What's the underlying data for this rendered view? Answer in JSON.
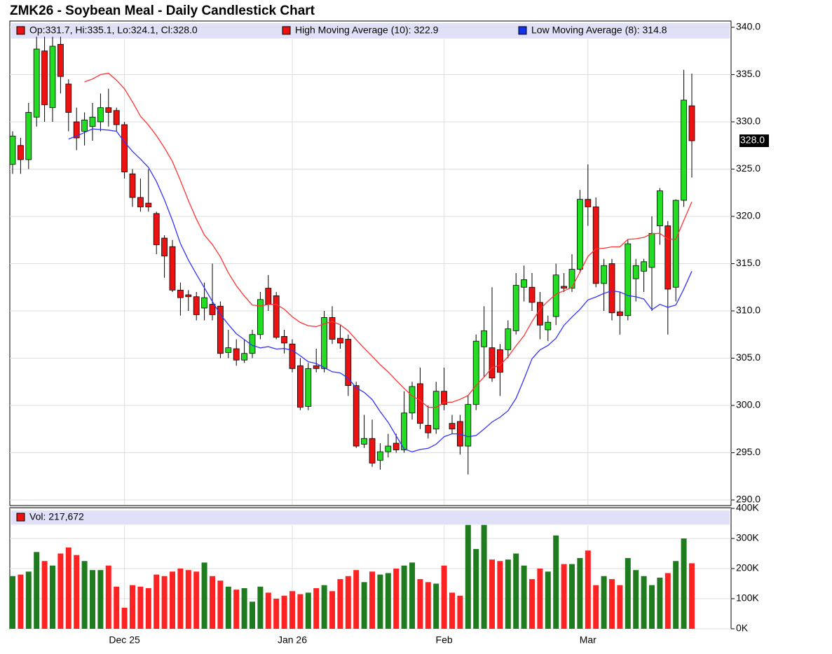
{
  "chart_data": {
    "type": "candlestick",
    "title": "ZMK26 - Soybean Meal - Daily Candlestick Chart",
    "ohlc_label": "Op:331.7, Hi:335.1, Lo:324.1, Cl:328.0",
    "high_ma_label": "High Moving Average (10): 322.9",
    "low_ma_label": "Low Moving Average (8): 314.8",
    "volume_label": "Vol: 217,672",
    "last_price": {
      "value": 328.0,
      "label": "328.0"
    },
    "up_color": "#22dd22",
    "down_color": "#ee1111",
    "vol_up_color": "#1e7b1e",
    "vol_down_color": "#ff2222",
    "high_ma_color": "#ff3333",
    "low_ma_color": "#3333ff",
    "categories": [
      null,
      null,
      null,
      null,
      null,
      null,
      null,
      null,
      null,
      null,
      null,
      null,
      null,
      null,
      "Dec 25",
      null,
      null,
      null,
      null,
      null,
      null,
      null,
      null,
      null,
      null,
      null,
      null,
      null,
      null,
      null,
      null,
      null,
      null,
      null,
      null,
      "Jan 26",
      null,
      null,
      null,
      null,
      null,
      null,
      null,
      null,
      null,
      null,
      null,
      null,
      null,
      null,
      null,
      null,
      null,
      null,
      "Feb",
      null,
      null,
      null,
      null,
      null,
      null,
      null,
      null,
      null,
      null,
      null,
      null,
      null,
      null,
      null,
      null,
      null,
      "Mar",
      null,
      null,
      null,
      null,
      null,
      null,
      null,
      null,
      null,
      null,
      null,
      null,
      null
    ],
    "open": [
      325.5,
      327.5,
      326,
      330.5,
      337.5,
      331.5,
      338.2,
      334,
      330,
      329,
      329.5,
      330,
      331.5,
      331.2,
      329.7,
      324.5,
      322,
      321.4,
      320.3,
      317.7,
      316.8,
      312.2,
      311.7,
      311.5,
      310.3,
      310.7,
      310.5,
      305.6,
      306,
      304.8,
      305.5,
      307.5,
      312.4,
      311.6,
      307.3,
      306.5,
      304.2,
      299.9,
      304.2,
      303.9,
      309.3,
      307.1,
      307,
      302.1,
      295.9,
      296.5,
      294.2,
      295.1,
      296,
      295.3,
      299.2,
      302.3,
      297.9,
      297.5,
      301.5,
      298.1,
      298.3,
      295.7,
      300.1,
      306.2,
      306.1,
      305.9,
      305.9,
      307.9,
      312.5,
      312.5,
      310.9,
      308,
      309.4,
      312.6,
      312.4,
      314.4,
      321.8,
      321,
      312.9,
      315,
      309.9,
      309.5,
      313.4,
      314.2,
      314.6,
      319,
      319,
      312.5,
      321.7,
      331.7
    ],
    "high": [
      329,
      328.3,
      332,
      339,
      339,
      339,
      339,
      334.5,
      331.5,
      331,
      332,
      333,
      333.5,
      331.5,
      330,
      325,
      324,
      325,
      320.5,
      318,
      317.5,
      313,
      312.2,
      312,
      313,
      315,
      311,
      308,
      307,
      307,
      308,
      312,
      313.8,
      312,
      308,
      307,
      305,
      304.5,
      306,
      310,
      310.5,
      308.5,
      307.5,
      302.5,
      299,
      298.5,
      296,
      297,
      297,
      301.5,
      302.5,
      304,
      300,
      302.5,
      304,
      299,
      299,
      301,
      307.5,
      310.5,
      312.5,
      306.5,
      309,
      314,
      314.8,
      314,
      312,
      309.5,
      315,
      314,
      316,
      322.8,
      325.5,
      322,
      315.5,
      315.5,
      312,
      317.5,
      315.5,
      315.5,
      320,
      323,
      319.5,
      321.8,
      335.5,
      335.1
    ],
    "low": [
      324.5,
      324.5,
      325,
      329.5,
      330,
      330,
      333,
      329,
      327,
      327.5,
      328,
      329,
      329.5,
      329,
      324,
      321,
      320.5,
      320.5,
      316,
      313.5,
      312,
      309.5,
      310,
      309,
      309,
      309,
      305,
      305,
      304.2,
      304.5,
      305,
      307,
      310,
      307,
      305.5,
      303.5,
      299.5,
      299.5,
      303.5,
      303.5,
      306.5,
      306,
      301,
      295.5,
      295.5,
      293.5,
      293.2,
      294.5,
      295,
      295,
      298.5,
      297.5,
      296.5,
      297,
      299.5,
      297,
      294.8,
      292.7,
      299.5,
      303,
      302.5,
      301,
      305,
      307.5,
      311,
      310,
      307,
      306.8,
      308.5,
      312,
      312,
      314,
      319,
      312.5,
      310,
      309,
      307.5,
      309,
      311,
      312,
      310,
      317,
      307.5,
      311,
      321,
      324.1
    ],
    "close": [
      328.5,
      326,
      331,
      337.7,
      331.8,
      338,
      334.8,
      331,
      328.3,
      330.2,
      330.5,
      331.5,
      331,
      329.7,
      324.7,
      322,
      321,
      321,
      317,
      315.8,
      312.2,
      311.4,
      311.5,
      309.6,
      311.4,
      309.6,
      305.5,
      306.1,
      304.8,
      305.5,
      307.5,
      311.2,
      310.7,
      307.2,
      306.6,
      303.9,
      299.8,
      303.9,
      303.9,
      309.3,
      307,
      306.6,
      302.1,
      295.7,
      296.5,
      293.9,
      295.1,
      295.7,
      295.3,
      299.2,
      302,
      298.1,
      297.1,
      301.5,
      300.1,
      297.5,
      295.7,
      300.1,
      306.8,
      307.9,
      302.9,
      303.5,
      308.1,
      312.7,
      313.3,
      310.9,
      308.5,
      308.8,
      313.8,
      312.4,
      314.4,
      321.8,
      321,
      312.9,
      314.8,
      309.8,
      309.5,
      317.1,
      314.8,
      315.2,
      318.2,
      322.7,
      312.3,
      321.7,
      332.3,
      328.0
    ],
    "volume": [
      175,
      180,
      190,
      255,
      225,
      210,
      250,
      270,
      245,
      225,
      195,
      195,
      210,
      140,
      70,
      145,
      140,
      135,
      180,
      175,
      190,
      200,
      195,
      190,
      220,
      175,
      160,
      140,
      130,
      135,
      90,
      140,
      120,
      100,
      110,
      125,
      115,
      120,
      135,
      145,
      125,
      165,
      175,
      195,
      155,
      190,
      180,
      185,
      200,
      210,
      220,
      165,
      155,
      150,
      210,
      120,
      110,
      345,
      265,
      345,
      230,
      225,
      230,
      250,
      210,
      165,
      200,
      190,
      310,
      215,
      215,
      235,
      260,
      145,
      175,
      165,
      145,
      235,
      195,
      175,
      145,
      170,
      185,
      225,
      300,
      217.672
    ],
    "ylim": [
      290,
      340
    ],
    "yticks": [
      {
        "value": 290,
        "label": "290.0"
      },
      {
        "value": 295,
        "label": "295.0"
      },
      {
        "value": 300,
        "label": "300.0"
      },
      {
        "value": 305,
        "label": "305.0"
      },
      {
        "value": 310,
        "label": "310.0"
      },
      {
        "value": 315,
        "label": "315.0"
      },
      {
        "value": 320,
        "label": "320.0"
      },
      {
        "value": 325,
        "label": "325.0"
      },
      {
        "value": 330,
        "label": "330.0"
      },
      {
        "value": 335,
        "label": "335.0"
      },
      {
        "value": 340,
        "label": "340.0"
      }
    ],
    "y2lim": [
      0,
      400
    ],
    "y2ticks": [
      {
        "value": 0,
        "label": "0K"
      },
      {
        "value": 100,
        "label": "100K"
      },
      {
        "value": 200,
        "label": "200K"
      },
      {
        "value": 300,
        "label": "300K"
      },
      {
        "value": 400,
        "label": "400K"
      }
    ],
    "grid": true
  }
}
